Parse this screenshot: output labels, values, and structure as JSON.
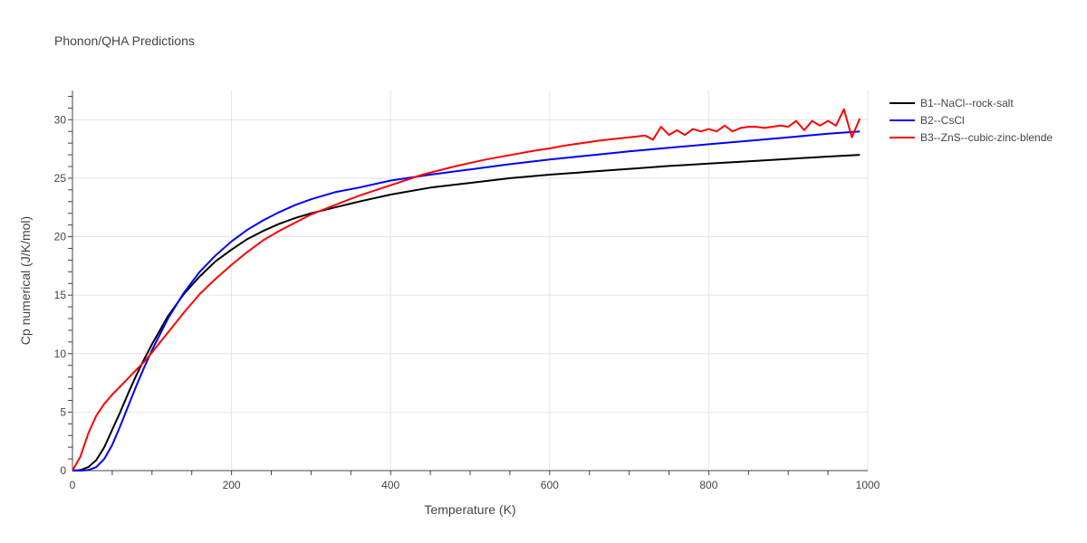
{
  "chart_data": {
    "type": "line",
    "title": "Phonon/QHA Predictions",
    "xlabel": "Temperature (K)",
    "ylabel": "Cp numerical (J/K/mol)",
    "xlim": [
      0,
      1000
    ],
    "ylim": [
      0,
      32.5
    ],
    "xticks": [
      0,
      200,
      400,
      600,
      800,
      1000
    ],
    "yticks": [
      0,
      5,
      10,
      15,
      20,
      25,
      30
    ],
    "grid": true,
    "legend_position": "top-right outside",
    "series": [
      {
        "name": "B1--NaCl--rock-salt",
        "color": "#000000",
        "x": [
          0,
          10,
          20,
          30,
          40,
          50,
          60,
          70,
          80,
          90,
          100,
          120,
          140,
          160,
          180,
          200,
          220,
          240,
          260,
          280,
          300,
          330,
          360,
          400,
          450,
          500,
          550,
          600,
          650,
          700,
          750,
          800,
          850,
          900,
          950,
          990
        ],
        "y": [
          0,
          0.05,
          0.3,
          0.9,
          2.0,
          3.5,
          5.0,
          6.6,
          8.1,
          9.5,
          10.8,
          13.2,
          15.1,
          16.6,
          17.9,
          18.9,
          19.8,
          20.5,
          21.1,
          21.6,
          22.0,
          22.5,
          23.0,
          23.6,
          24.2,
          24.6,
          25.0,
          25.3,
          25.55,
          25.8,
          26.05,
          26.25,
          26.45,
          26.65,
          26.85,
          27.0
        ]
      },
      {
        "name": "B2--CsCl",
        "color": "#0000ff",
        "x": [
          0,
          10,
          20,
          30,
          40,
          50,
          60,
          70,
          80,
          90,
          100,
          120,
          140,
          160,
          180,
          200,
          220,
          240,
          260,
          280,
          300,
          330,
          360,
          400,
          450,
          500,
          550,
          600,
          650,
          700,
          750,
          800,
          850,
          900,
          950,
          990
        ],
        "y": [
          0,
          0.0,
          0.05,
          0.3,
          1.0,
          2.2,
          3.8,
          5.5,
          7.2,
          8.8,
          10.3,
          13.0,
          15.2,
          17.0,
          18.4,
          19.6,
          20.6,
          21.4,
          22.1,
          22.7,
          23.2,
          23.8,
          24.2,
          24.8,
          25.3,
          25.75,
          26.2,
          26.6,
          26.95,
          27.3,
          27.6,
          27.9,
          28.2,
          28.5,
          28.8,
          29.0
        ]
      },
      {
        "name": "B3--ZnS--cubic-zinc-blende",
        "color": "#ff0000",
        "x": [
          0,
          10,
          20,
          30,
          40,
          50,
          60,
          70,
          80,
          90,
          100,
          120,
          140,
          160,
          180,
          200,
          220,
          240,
          260,
          280,
          300,
          330,
          360,
          400,
          440,
          480,
          520,
          560,
          580,
          600,
          620,
          640,
          660,
          680,
          700,
          720,
          730,
          740,
          750,
          760,
          770,
          780,
          790,
          800,
          810,
          820,
          830,
          840,
          850,
          860,
          870,
          880,
          890,
          900,
          910,
          920,
          930,
          940,
          950,
          960,
          970,
          980,
          990
        ],
        "y": [
          0,
          1.2,
          3.2,
          4.7,
          5.7,
          6.5,
          7.2,
          7.9,
          8.6,
          9.3,
          10.1,
          11.8,
          13.5,
          15.1,
          16.4,
          17.6,
          18.7,
          19.7,
          20.5,
          21.2,
          21.9,
          22.7,
          23.5,
          24.4,
          25.3,
          26.0,
          26.6,
          27.1,
          27.35,
          27.55,
          27.8,
          28.0,
          28.2,
          28.35,
          28.5,
          28.65,
          28.3,
          29.4,
          28.7,
          29.1,
          28.7,
          29.2,
          29.0,
          29.2,
          29.0,
          29.5,
          29.0,
          29.3,
          29.4,
          29.4,
          29.3,
          29.4,
          29.5,
          29.4,
          29.9,
          29.1,
          29.9,
          29.5,
          29.9,
          29.5,
          30.9,
          28.5,
          30.1
        ]
      }
    ]
  }
}
